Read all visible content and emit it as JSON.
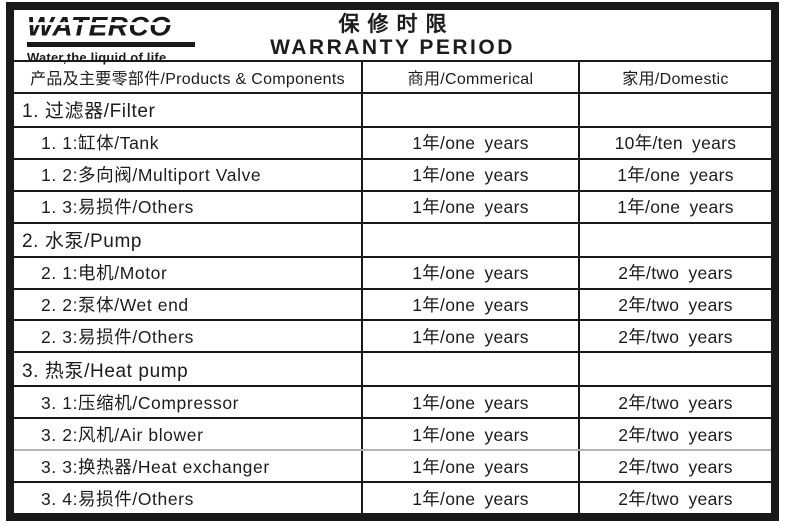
{
  "brand": {
    "logo": "WATERCO",
    "tagline": "Water,the liquid of life"
  },
  "title": {
    "zh": "保修时限",
    "en": "WARRANTY PERIOD"
  },
  "table": {
    "columns": {
      "products": "产品及主要零部件/Products & Components",
      "commercial": "商用/Commerical",
      "domestic": "家用/Domestic"
    },
    "rows": [
      {
        "label": "1. 过滤器/Filter",
        "commercial": "",
        "domestic": ""
      },
      {
        "label": "1. 1:缸体/Tank",
        "commercial": "1年/one years",
        "domestic": "10年/ten years"
      },
      {
        "label": "1. 2:多向阀/Multiport Valve",
        "commercial": "1年/one years",
        "domestic": "1年/one years"
      },
      {
        "label": "1. 3:易损件/Others",
        "commercial": "1年/one years",
        "domestic": "1年/one years"
      },
      {
        "label": "2. 水泵/Pump",
        "commercial": "",
        "domestic": ""
      },
      {
        "label": "2. 1:电机/Motor",
        "commercial": "1年/one years",
        "domestic": "2年/two years"
      },
      {
        "label": "2. 2:泵体/Wet end",
        "commercial": "1年/one years",
        "domestic": "2年/two years"
      },
      {
        "label": "2. 3:易损件/Others",
        "commercial": "1年/one years",
        "domestic": "2年/two years"
      },
      {
        "label": "3. 热泵/Heat pump",
        "commercial": "",
        "domestic": ""
      },
      {
        "label": "3. 1:压缩机/Compressor",
        "commercial": "1年/one years",
        "domestic": "2年/two years"
      },
      {
        "label": "3. 2:风机/Air blower",
        "commercial": "1年/one years",
        "domestic": "2年/two years"
      },
      {
        "label": "3. 3:换热器/Heat exchanger",
        "commercial": "1年/one years",
        "domestic": "2年/two years"
      },
      {
        "label": "3. 4:易损件/Others",
        "commercial": "1年/one years",
        "domestic": "2年/two years"
      }
    ]
  }
}
